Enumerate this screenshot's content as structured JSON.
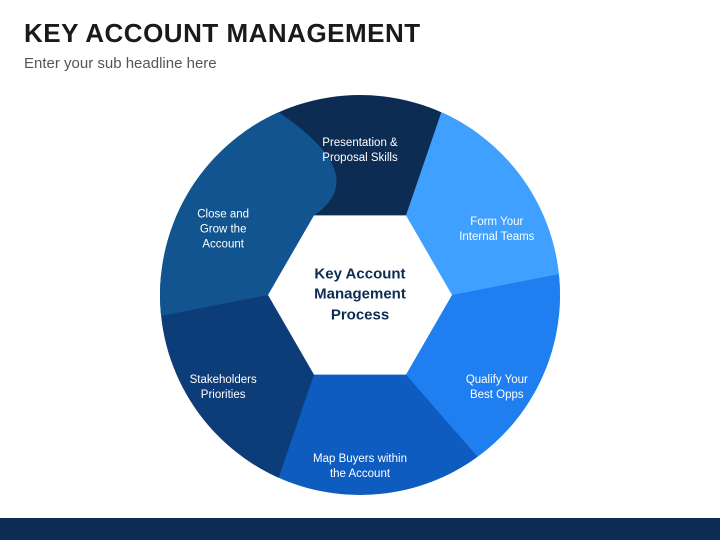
{
  "header": {
    "title": "KEY ACCOUNT MANAGEMENT",
    "subtitle": "Enter your sub headline here"
  },
  "diagram": {
    "center_label": "Key Account\nManagement\nProcess",
    "center_color": "#0d2c54",
    "center_fontsize": 15,
    "segment_fontsize": 11.5,
    "segment_color_text": "#ffffff",
    "outer_radius": 200,
    "inner_radius": 90,
    "background": "#ffffff",
    "segments": [
      {
        "label": "Presentation &\nProposal Skills",
        "color": "#0d2c54",
        "icon": "presentation-chart-icon"
      },
      {
        "label": "Form Your\nInternal Teams",
        "color": "#3fa0ff",
        "icon": "handshake-icon"
      },
      {
        "label": "Qualify Your\nBest Opps",
        "color": "#1f7ff0",
        "icon": "magnifier-icon"
      },
      {
        "label": "Map Buyers within\nthe Account",
        "color": "#0e5cc0",
        "icon": "pie-chart-icon"
      },
      {
        "label": "Stakeholders\nPriorities",
        "color": "#0d3d78",
        "icon": "person-icon"
      },
      {
        "label": "Close and\nGrow the\nAccount",
        "color": "#12548f",
        "icon": "desk-person-icon"
      }
    ],
    "footer_bar_color": "#0d2c54"
  }
}
